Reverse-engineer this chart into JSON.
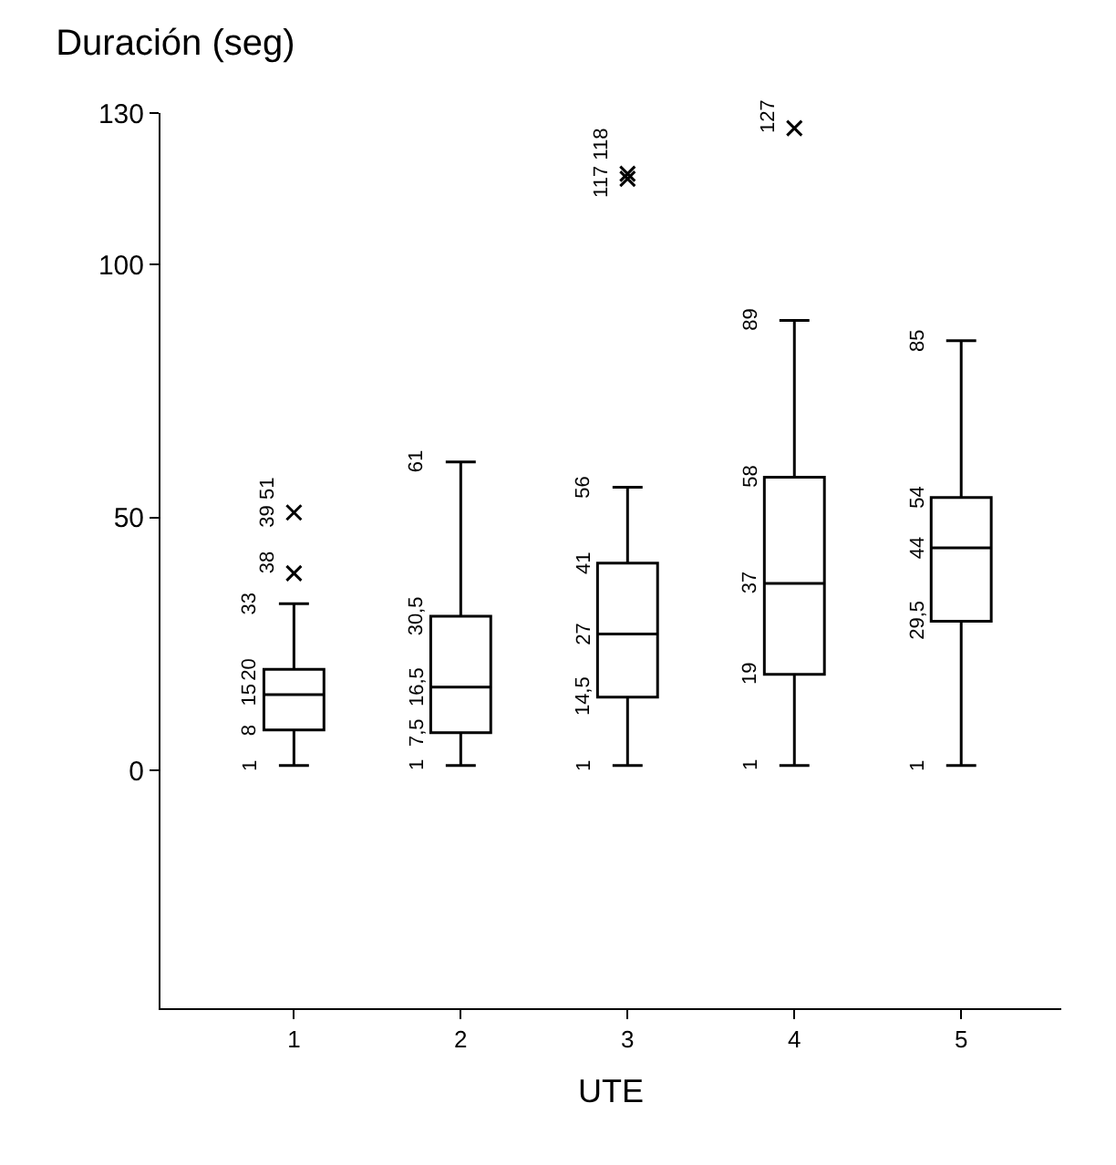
{
  "chart_data": {
    "type": "box",
    "title": "Duración (seg)",
    "xlabel": "UTE",
    "categories": [
      "1",
      "2",
      "3",
      "4",
      "5"
    ],
    "boxes": [
      {
        "low": 1,
        "q1": 8,
        "median": 15,
        "q3": 20,
        "high": 33,
        "outliers": [
          39,
          51
        ]
      },
      {
        "low": 1,
        "q1": 7.5,
        "median": 16.5,
        "q3": 30.5,
        "high": 61
      },
      {
        "low": 1,
        "q1": 14.5,
        "median": 27,
        "q3": 41,
        "high": 56,
        "outliers": [
          117,
          118
        ]
      },
      {
        "low": 1,
        "q1": 19,
        "median": 37,
        "q3": 58,
        "high": 89,
        "outliers": [
          127
        ]
      },
      {
        "low": 1,
        "q1": 29.5,
        "median": 44,
        "q3": 54,
        "high": 85
      }
    ],
    "color": "#000000",
    "ylim": [
      -47,
      130
    ],
    "yticks": [
      0,
      50,
      100,
      130
    ],
    "annotations": [
      {
        "text": "1",
        "x": "1",
        "y": 1
      },
      {
        "text": "8",
        "x": "1",
        "y": 8
      },
      {
        "text": "15",
        "x": "1",
        "y": 15
      },
      {
        "text": "20",
        "x": "1",
        "y": 20
      },
      {
        "text": "33",
        "x": "1",
        "y": 33
      },
      "38",
      "39 51",
      {
        "text": "1",
        "x": "2",
        "y": 1
      },
      {
        "text": "7,5",
        "x": "2",
        "y": 7.5
      },
      {
        "text": "16,5",
        "x": "2",
        "y": 16.5
      },
      {
        "text": "30,5",
        "x": "2",
        "y": 30.5
      },
      {
        "text": "61",
        "x": "2",
        "y": 61
      },
      {
        "text": "1",
        "x": "3",
        "y": 1
      },
      {
        "text": "14,5",
        "x": "3",
        "y": 14.5
      },
      {
        "text": "27",
        "x": "3",
        "y": 27
      },
      {
        "text": "41",
        "x": "3",
        "y": 41
      },
      {
        "text": "56",
        "x": "3",
        "y": 56
      },
      "117 118",
      {
        "text": "1",
        "x": "4",
        "y": 1
      },
      {
        "text": "19",
        "x": "4",
        "y": 19
      },
      {
        "text": "37",
        "x": "4",
        "y": 37
      },
      {
        "text": "58",
        "x": "4",
        "y": 58
      },
      {
        "text": "89",
        "x": "4",
        "y": 89
      },
      "127",
      {
        "text": "1",
        "x": "5",
        "y": 1
      },
      {
        "text": "29,5",
        "x": "5",
        "y": 29.5
      },
      {
        "text": "44",
        "x": "5",
        "y": 44
      },
      {
        "text": "54",
        "x": "5",
        "y": 54
      },
      {
        "text": "85",
        "x": "5",
        "y": 85
      }
    ]
  }
}
